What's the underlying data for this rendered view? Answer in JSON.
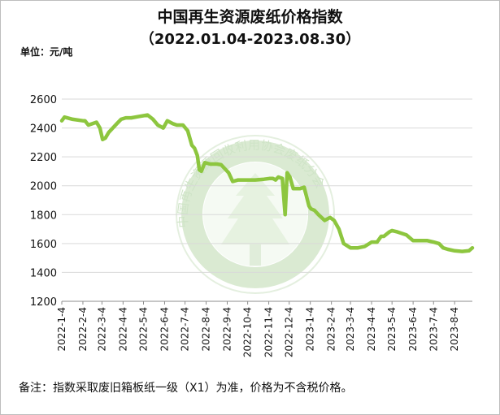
{
  "chart_data": {
    "type": "line",
    "title": "中国再生资源废纸价格指数",
    "subtitle": "（2022.01.04-2023.08.30）",
    "unit_label": "单位：元/吨",
    "note": "备注：指数采取废旧箱板纸一级（X1）为准，价格为不含税价格。",
    "watermark": "中国再生资源回收利用协会废纸分会",
    "line_color": "#8dc63f",
    "ylim": [
      1200,
      2600
    ],
    "yticks": [
      1200,
      1400,
      1600,
      1800,
      2000,
      2200,
      2400,
      2600
    ],
    "xlim": [
      "2022-01-04",
      "2023-08-30"
    ],
    "x_tick_labels": [
      "2022-1-4",
      "2022-2-4",
      "2022-3-4",
      "2022-4-4",
      "2022-5-4",
      "2022-6-4",
      "2022-7-4",
      "2022-8-4",
      "2022-9-4",
      "2022-10-4",
      "2022-11-4",
      "2022-12-4",
      "2023-1-4",
      "2023-2-4",
      "2023-3-4",
      "2023-4-4",
      "2023-5-4",
      "2023-6-4",
      "2023-7-4",
      "2023-8-4"
    ],
    "series": [
      {
        "x": [
          "2022-01-04",
          "2022-01-08",
          "2022-01-20",
          "2022-02-04",
          "2022-02-07",
          "2022-02-12",
          "2022-02-18",
          "2022-02-24",
          "2022-03-01",
          "2022-03-05",
          "2022-03-09",
          "2022-03-14",
          "2022-03-20",
          "2022-03-26",
          "2022-04-01",
          "2022-04-08",
          "2022-04-16",
          "2022-04-28",
          "2022-05-10",
          "2022-05-18",
          "2022-05-25",
          "2022-06-02",
          "2022-06-08",
          "2022-06-12",
          "2022-06-16",
          "2022-06-22",
          "2022-07-01",
          "2022-07-08",
          "2022-07-14",
          "2022-07-18",
          "2022-07-22",
          "2022-07-25",
          "2022-07-28",
          "2022-08-02",
          "2022-08-10",
          "2022-08-20",
          "2022-08-26",
          "2022-08-31",
          "2022-09-06",
          "2022-09-12",
          "2022-09-20",
          "2022-10-04",
          "2022-10-15",
          "2022-10-28",
          "2022-11-05",
          "2022-11-10",
          "2022-11-14",
          "2022-11-18",
          "2022-11-24",
          "2022-11-28",
          "2022-12-01",
          "2022-12-05",
          "2022-12-10",
          "2022-12-14",
          "2022-12-20",
          "2022-12-26",
          "2023-01-02",
          "2023-01-05",
          "2023-01-10",
          "2023-01-16",
          "2023-01-25",
          "2023-02-02",
          "2023-02-08",
          "2023-02-15",
          "2023-02-22",
          "2023-03-04",
          "2023-03-15",
          "2023-03-25",
          "2023-04-04",
          "2023-04-12",
          "2023-04-18",
          "2023-04-22",
          "2023-04-30",
          "2023-05-04",
          "2023-05-12",
          "2023-05-25",
          "2023-06-04",
          "2023-06-15",
          "2023-06-25",
          "2023-07-04",
          "2023-07-12",
          "2023-07-18",
          "2023-07-25",
          "2023-08-04",
          "2023-08-15",
          "2023-08-25",
          "2023-08-30"
        ],
        "values": [
          2450,
          2475,
          2460,
          2450,
          2450,
          2420,
          2430,
          2440,
          2400,
          2320,
          2330,
          2370,
          2400,
          2430,
          2460,
          2470,
          2470,
          2480,
          2490,
          2460,
          2420,
          2400,
          2450,
          2440,
          2430,
          2420,
          2420,
          2380,
          2280,
          2260,
          2210,
          2110,
          2100,
          2160,
          2150,
          2150,
          2145,
          2120,
          2090,
          2030,
          2040,
          2040,
          2040,
          2045,
          2050,
          2050,
          2040,
          2060,
          2050,
          1800,
          2090,
          2060,
          1980,
          1980,
          1980,
          1990,
          1860,
          1840,
          1830,
          1800,
          1760,
          1780,
          1760,
          1700,
          1600,
          1570,
          1570,
          1580,
          1610,
          1610,
          1650,
          1650,
          1680,
          1690,
          1680,
          1660,
          1620,
          1620,
          1620,
          1610,
          1600,
          1570,
          1560,
          1550,
          1545,
          1550,
          1570
        ]
      }
    ]
  }
}
